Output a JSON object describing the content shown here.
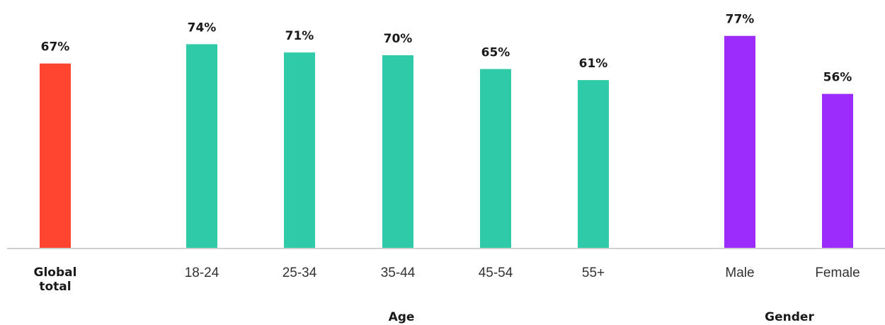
{
  "chart_data": {
    "type": "bar",
    "title": "",
    "xlabel": "",
    "ylabel": "",
    "ylim": [
      0,
      100
    ],
    "grid": false,
    "legend": "none",
    "categories": [
      "Global total",
      "18-24",
      "25-34",
      "35-44",
      "45-54",
      "55+",
      "Male",
      "Female"
    ],
    "values": [
      67,
      74,
      71,
      70,
      65,
      61,
      77,
      56
    ],
    "value_labels": [
      "67%",
      "74%",
      "71%",
      "70%",
      "65%",
      "61%",
      "77%",
      "56%"
    ],
    "category_groups": [
      "total",
      "age",
      "age",
      "age",
      "age",
      "age",
      "gender",
      "gender"
    ],
    "group_labels": {
      "age": "Age",
      "gender": "Gender"
    },
    "colors": {
      "total": "#ff4530",
      "age": "#2fcaa8",
      "gender": "#9b2cfb",
      "baseline": "#d0d0d0"
    }
  }
}
